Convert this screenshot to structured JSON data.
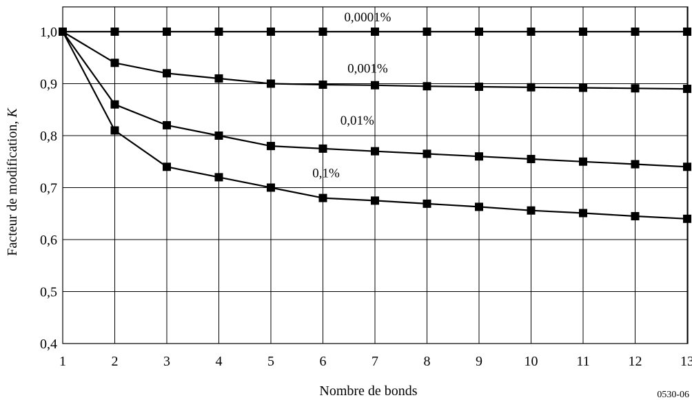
{
  "chart_data": {
    "type": "line",
    "title": "",
    "xlabel": "Nombre de bonds",
    "ylabel_main": "Facteur de modification, ",
    "ylabel_var": "K",
    "figure_id": "0530-06",
    "xlim": [
      1,
      13
    ],
    "ylim": [
      0.4,
      1.05
    ],
    "grid": true,
    "x_ticks": [
      "1",
      "2",
      "3",
      "4",
      "5",
      "6",
      "7",
      "8",
      "9",
      "10",
      "11",
      "12",
      "13"
    ],
    "y_ticks": [
      {
        "value": 0.4,
        "label": "0,4"
      },
      {
        "value": 0.5,
        "label": "0,5"
      },
      {
        "value": 0.6,
        "label": "0,6"
      },
      {
        "value": 0.7,
        "label": "0,7"
      },
      {
        "value": 0.8,
        "label": "0,8"
      },
      {
        "value": 0.9,
        "label": "0,9"
      },
      {
        "value": 1.0,
        "label": "1,0"
      }
    ],
    "x": [
      1,
      2,
      3,
      4,
      5,
      6,
      7,
      8,
      9,
      10,
      11,
      12,
      13
    ],
    "series": [
      {
        "name": "0,0001%",
        "label_pos": [
          5.8,
          1.02
        ],
        "values": [
          1.0,
          1.0,
          1.0,
          1.0,
          1.0,
          1.0,
          1.0,
          1.0,
          1.0,
          1.0,
          1.0,
          1.0,
          1.0
        ]
      },
      {
        "name": "0,001%",
        "label_pos": [
          5.8,
          0.921
        ],
        "values": [
          1.0,
          0.94,
          0.92,
          0.91,
          0.9,
          0.898,
          0.897,
          0.895,
          0.894,
          0.893,
          0.892,
          0.891,
          0.89
        ]
      },
      {
        "name": "0,01%",
        "label_pos": [
          5.6,
          0.821
        ],
        "values": [
          1.0,
          0.86,
          0.82,
          0.8,
          0.78,
          0.775,
          0.77,
          0.765,
          0.76,
          0.755,
          0.75,
          0.745,
          0.74
        ]
      },
      {
        "name": "0,1%",
        "label_pos": [
          5.0,
          0.72
        ],
        "values": [
          1.0,
          0.81,
          0.74,
          0.72,
          0.7,
          0.68,
          0.675,
          0.669,
          0.663,
          0.656,
          0.651,
          0.645,
          0.64
        ]
      }
    ]
  }
}
